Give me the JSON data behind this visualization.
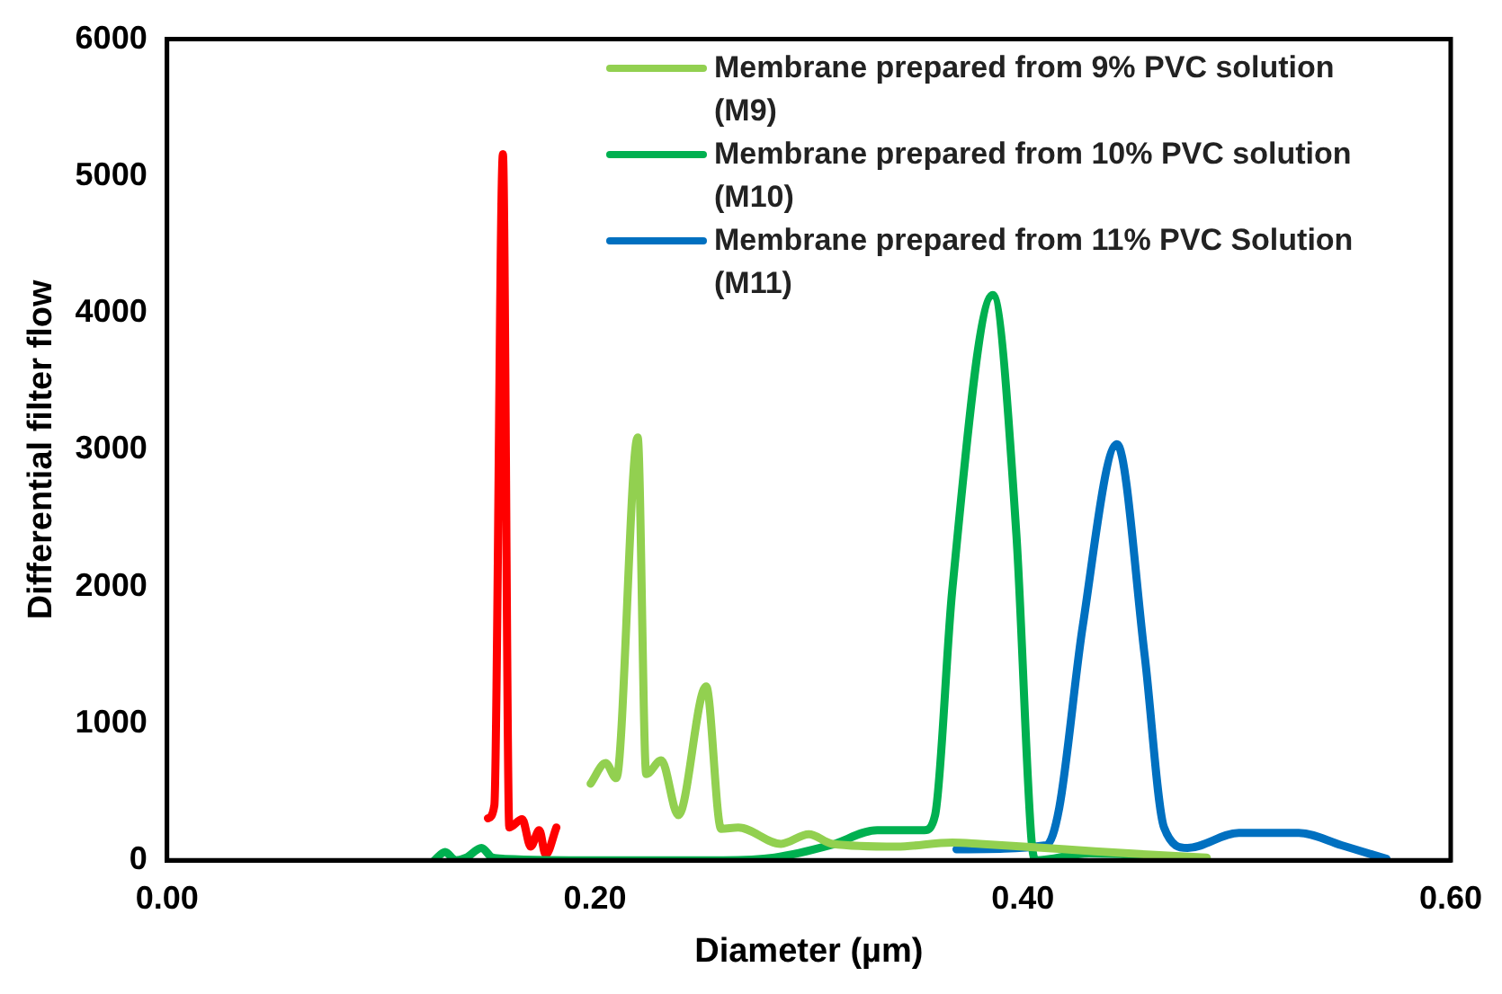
{
  "chart_data": {
    "type": "line",
    "xlabel": "Diameter (µm)",
    "ylabel": "Differential filter flow",
    "xlim": [
      0,
      0.6
    ],
    "ylim": [
      0,
      6000
    ],
    "xticks": [
      {
        "value": 0,
        "label": "0.00"
      },
      {
        "value": 0.2,
        "label": "0.20"
      },
      {
        "value": 0.4,
        "label": "0.40"
      },
      {
        "value": 0.6,
        "label": "0.60"
      }
    ],
    "yticks": [
      0,
      1000,
      2000,
      3000,
      4000,
      5000,
      6000
    ],
    "grid": false,
    "legend": "top right",
    "marker": "none",
    "line_style": "solid",
    "series": [
      {
        "name": "Membrane prepared from 9% PVC solution (M9)",
        "color": "#92d050",
        "x": [
          0.198,
          0.205,
          0.21,
          0.22,
          0.224,
          0.231,
          0.239,
          0.252,
          0.259,
          0.267,
          0.287,
          0.3,
          0.311,
          0.341,
          0.367,
          0.38,
          0.42,
          0.46,
          0.486
        ],
        "values": [
          560,
          710,
          600,
          3090,
          630,
          730,
          330,
          1270,
          230,
          240,
          120,
          190,
          120,
          100,
          130,
          120,
          80,
          40,
          20
        ]
      },
      {
        "name": "Membrane prepared from 10% PVC solution (M10)",
        "color": "#00b050",
        "x": [
          0.125,
          0.13,
          0.135,
          0.14,
          0.147,
          0.152,
          0.158,
          0.2,
          0.26,
          0.284,
          0.31,
          0.332,
          0.354,
          0.359,
          0.367,
          0.386,
          0.397,
          0.404,
          0.406,
          0.431,
          0.486
        ],
        "values": [
          0,
          60,
          0,
          20,
          90,
          20,
          10,
          0,
          0,
          20,
          110,
          220,
          220,
          330,
          1970,
          4130,
          2380,
          160,
          0,
          50,
          10
        ]
      },
      {
        "name": "Membrane prepared from 11% PVC Solution (M11)",
        "color": "#0070c0",
        "x": [
          0.369,
          0.411,
          0.417,
          0.428,
          0.444,
          0.457,
          0.466,
          0.477,
          0.501,
          0.529,
          0.549,
          0.57
        ],
        "values": [
          80,
          110,
          380,
          1710,
          3040,
          1490,
          240,
          90,
          200,
          200,
          110,
          10
        ]
      },
      {
        "color": "#ff0000",
        "x": [
          0.15,
          0.153,
          0.157,
          0.16,
          0.166,
          0.17,
          0.174,
          0.177,
          0.182
        ],
        "values": [
          307,
          400,
          5160,
          240,
          300,
          100,
          220,
          40,
          240
        ]
      }
    ]
  }
}
